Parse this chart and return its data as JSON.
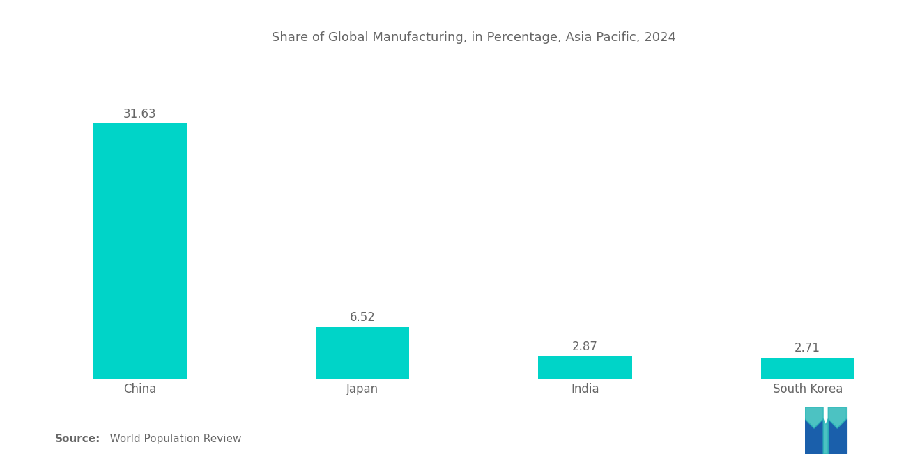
{
  "title": "Share of Global Manufacturing, in Percentage, Asia Pacific, 2024",
  "categories": [
    "China",
    "Japan",
    "India",
    "South Korea"
  ],
  "values": [
    31.63,
    6.52,
    2.87,
    2.71
  ],
  "bar_color": "#00D4C8",
  "background_color": "#ffffff",
  "title_color": "#666666",
  "label_color": "#666666",
  "value_color": "#666666",
  "source_bold": "Source:",
  "source_normal": "   World Population Review",
  "title_fontsize": 13,
  "label_fontsize": 12,
  "value_fontsize": 12,
  "source_fontsize": 11,
  "ylim": [
    0,
    40
  ]
}
